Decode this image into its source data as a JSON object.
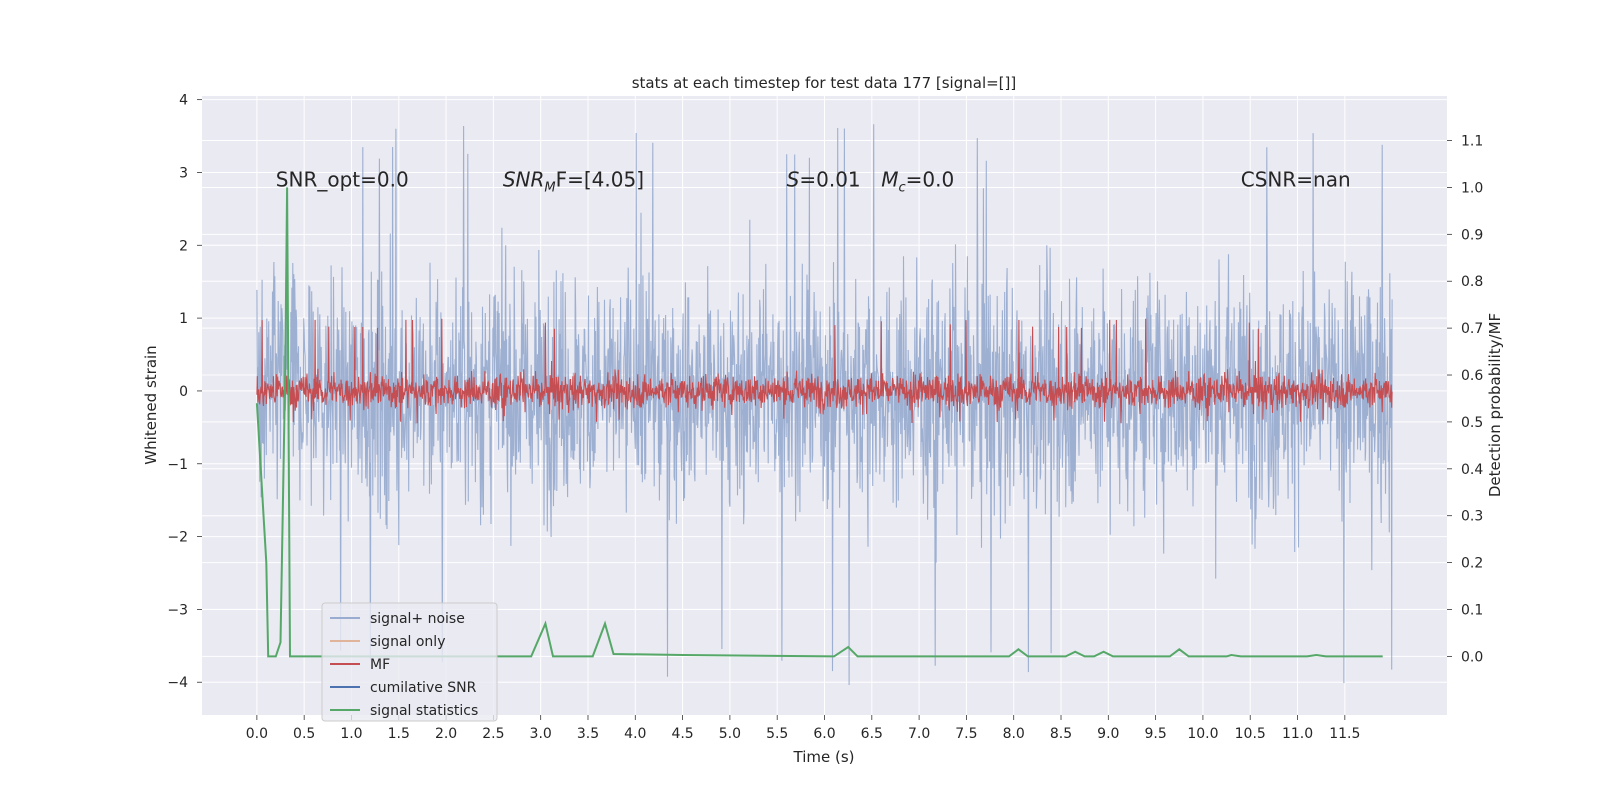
{
  "chart_data": {
    "type": "line",
    "title": "stats at each timestep for test data 177 [signal=[]]",
    "xlabel": "Time (s)",
    "ylabel": "Whitened strain",
    "y2label": "Detection probability/MF",
    "xlim": [
      -0.58,
      12.58
    ],
    "ylim": [
      -4.45,
      4.05
    ],
    "y2lim": [
      -0.125,
      1.195
    ],
    "x_ticks": [
      "0.0",
      "0.5",
      "1.0",
      "1.5",
      "2.0",
      "2.5",
      "3.0",
      "3.5",
      "4.0",
      "4.5",
      "5.0",
      "5.5",
      "6.0",
      "6.5",
      "7.0",
      "7.5",
      "8.0",
      "8.5",
      "9.0",
      "9.5",
      "10.0",
      "10.5",
      "11.0",
      "11.5"
    ],
    "y_ticks": [
      "4",
      "3",
      "2",
      "1",
      "0",
      "−1",
      "−2",
      "−3",
      "−4"
    ],
    "y2_ticks": [
      "1.1",
      "1.0",
      "0.9",
      "0.8",
      "0.7",
      "0.6",
      "0.5",
      "0.4",
      "0.3",
      "0.2",
      "0.1",
      "0.0"
    ],
    "grid": true,
    "legend_position": "lower-left",
    "annotations": [
      {
        "id": "snr-opt",
        "text": "SNR_opt=0.0",
        "x": 0.2,
        "y": 2.9
      },
      {
        "id": "snr-mf",
        "prefix": "SNR",
        "sub": "M",
        "suffix": "F=[4.05]",
        "x": 2.6,
        "y": 2.9
      },
      {
        "id": "s-value",
        "italic": "S",
        "suffix": "=0.01",
        "x": 5.6,
        "y": 2.9
      },
      {
        "id": "mc-value",
        "italic": "M",
        "sub": "c",
        "suffix": "=0.0",
        "x": 6.6,
        "y": 2.9
      },
      {
        "id": "csnr",
        "text": "CSNR=nan",
        "x": 10.4,
        "y": 2.9
      }
    ],
    "series": [
      {
        "name": "signal+ noise",
        "color": "#9aadd0",
        "axis": "left",
        "x_range": [
          0.0,
          12.0
        ],
        "envelope": [
          -2.5,
          2.5
        ],
        "peak_range": [
          -4.1,
          3.7
        ]
      },
      {
        "name": "signal only",
        "color": "#e0b49a",
        "axis": "left",
        "values": []
      },
      {
        "name": "MF",
        "color": "#c44e52",
        "axis": "left",
        "x_range": [
          0.0,
          12.0
        ],
        "envelope": [
          -0.4,
          0.4
        ],
        "peak_range": [
          -0.45,
          1.0
        ]
      },
      {
        "name": "cumilative SNR",
        "color": "#4c72b0",
        "axis": "left",
        "values": []
      },
      {
        "name": "signal statistics",
        "color": "#55a868",
        "axis": "right",
        "points": [
          [
            0.0,
            0.54
          ],
          [
            0.1,
            0.2
          ],
          [
            0.12,
            0.0
          ],
          [
            0.2,
            0.0
          ],
          [
            0.25,
            0.03
          ],
          [
            0.3,
            0.62
          ],
          [
            0.32,
            1.0
          ],
          [
            0.35,
            0.0
          ],
          [
            0.5,
            0.0
          ],
          [
            2.9,
            0.0
          ],
          [
            3.05,
            0.07
          ],
          [
            3.13,
            0.0
          ],
          [
            3.55,
            0.0
          ],
          [
            3.68,
            0.07
          ],
          [
            3.77,
            0.005
          ],
          [
            4.5,
            0.003
          ],
          [
            6.1,
            0.0
          ],
          [
            6.25,
            0.02
          ],
          [
            6.35,
            0.0
          ],
          [
            7.95,
            0.0
          ],
          [
            8.05,
            0.015
          ],
          [
            8.15,
            0.0
          ],
          [
            8.55,
            0.0
          ],
          [
            8.65,
            0.01
          ],
          [
            8.75,
            0.0
          ],
          [
            8.85,
            0.0
          ],
          [
            8.95,
            0.01
          ],
          [
            9.05,
            0.0
          ],
          [
            9.65,
            0.0
          ],
          [
            9.75,
            0.015
          ],
          [
            9.85,
            0.0
          ],
          [
            10.25,
            0.0
          ],
          [
            10.3,
            0.003
          ],
          [
            10.4,
            0.0
          ],
          [
            11.1,
            0.0
          ],
          [
            11.2,
            0.003
          ],
          [
            11.3,
            0.0
          ],
          [
            11.9,
            0.0
          ]
        ]
      }
    ]
  }
}
